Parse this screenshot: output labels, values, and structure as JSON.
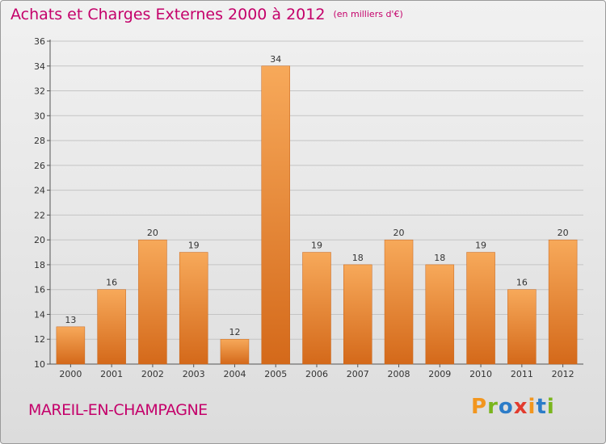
{
  "title": "Achats et Charges Externes 2000 à 2012",
  "subtitle": "(en milliers d'€)",
  "place": "MAREIL-EN-CHAMPAGNE",
  "logo": {
    "text": "Proxiti",
    "colors": [
      "#f2961e",
      "#7ab51d",
      "#2c7cc8",
      "#e23b2e",
      "#f2961e",
      "#2c7cc8",
      "#7ab51d"
    ]
  },
  "colors": {
    "title": "#c4006a",
    "bar_top": "#f7a95a",
    "bar_bottom": "#d4691a"
  },
  "chart_data": {
    "type": "bar",
    "categories": [
      "2000",
      "2001",
      "2002",
      "2003",
      "2004",
      "2005",
      "2006",
      "2007",
      "2008",
      "2009",
      "2010",
      "2011",
      "2012"
    ],
    "values": [
      13,
      16,
      20,
      19,
      12,
      34,
      19,
      18,
      20,
      18,
      19,
      16,
      20
    ],
    "ylim": [
      10,
      36
    ],
    "yticks": [
      10,
      12,
      14,
      16,
      18,
      20,
      22,
      24,
      26,
      28,
      30,
      32,
      34,
      36
    ],
    "grid": true,
    "xlabel": "",
    "ylabel": ""
  }
}
